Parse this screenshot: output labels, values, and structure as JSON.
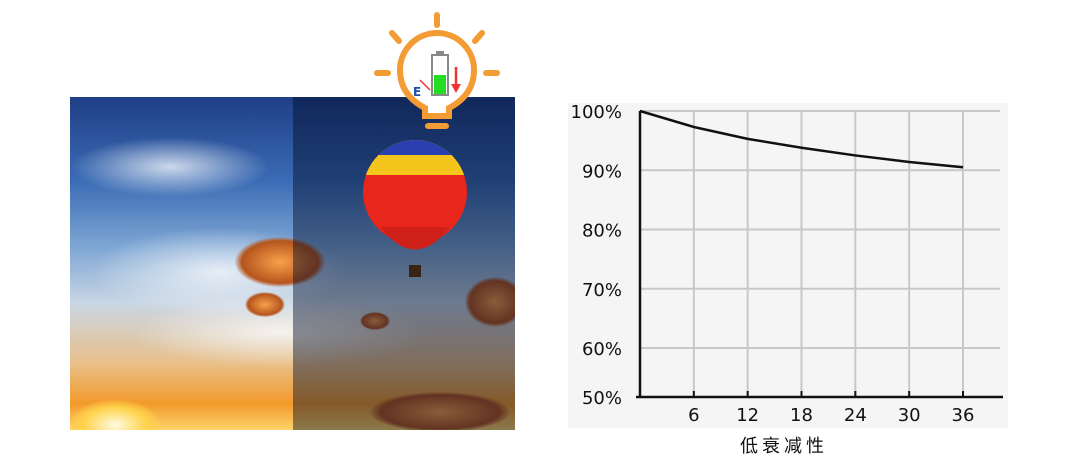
{
  "chart_data": {
    "type": "line",
    "xlabel": "低衰减性",
    "ylabel": "",
    "x_ticks": [
      "6",
      "12",
      "18",
      "24",
      "30",
      "36"
    ],
    "y_ticks": [
      "50%",
      "60%",
      "70%",
      "80%",
      "90%",
      "100%"
    ],
    "xlim": [
      0,
      39
    ],
    "ylim": [
      50,
      100
    ],
    "grid": true,
    "series": [
      {
        "x": [
          0,
          6,
          12,
          18,
          24,
          30,
          36
        ],
        "y": [
          100,
          97.3,
          95.3,
          93.8,
          92.5,
          91.4,
          90.5
        ]
      }
    ],
    "colors": {
      "line": "#111111",
      "grid": "#c8c8c8",
      "background": "#f6f5f5"
    }
  },
  "icon": {
    "name": "lightbulb-battery-icon",
    "gauge_letter": "E",
    "color": "#f39c33"
  }
}
